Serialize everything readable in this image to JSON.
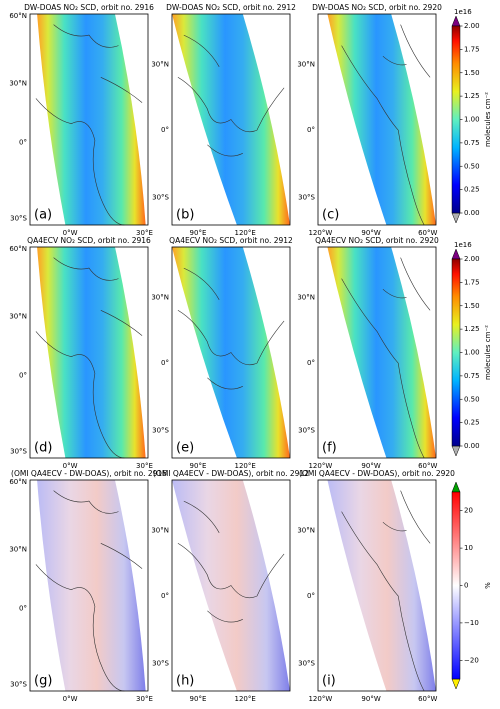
{
  "panels": [
    {
      "title": "DW-DOAS NO₂ SCD, orbit no. 2916",
      "letter": "(a)",
      "lat_ticks": [
        "60°N",
        "30°N",
        "0°",
        "30°S"
      ],
      "lon_ticks": [
        "0°W",
        "30°E"
      ]
    },
    {
      "title": "DW-DOAS NO₂ SCD, orbit no. 2912",
      "letter": "(b)",
      "lat_ticks": [
        "30°N",
        "0°",
        "30°S"
      ],
      "lon_ticks": [
        "90°E",
        "120°E"
      ]
    },
    {
      "title": "DW-DOAS NO₂ SCD, orbit no. 2920",
      "letter": "(c)",
      "lat_ticks": [
        "30°N",
        "0°",
        "30°S"
      ],
      "lon_ticks": [
        "120°W",
        "90°W",
        "60°W"
      ]
    },
    {
      "title": "QA4ECV NO₂ SCD, orbit no. 2916",
      "letter": "(d)",
      "lat_ticks": [
        "60°N",
        "30°N",
        "0°",
        "30°S"
      ],
      "lon_ticks": [
        "0°W",
        "30°E"
      ]
    },
    {
      "title": "QA4ECV NO₂ SCD, orbit no. 2912",
      "letter": "(e)",
      "lat_ticks": [
        "30°N",
        "0°",
        "30°S"
      ],
      "lon_ticks": [
        "90°E",
        "120°E"
      ]
    },
    {
      "title": "QA4ECV NO₂ SCD, orbit no. 2920",
      "letter": "(f)",
      "lat_ticks": [
        "30°N",
        "0°",
        "30°S"
      ],
      "lon_ticks": [
        "120°W",
        "90°W",
        "60°W"
      ]
    },
    {
      "title": "(OMI QA4ECV - DW-DOAS), orbit no. 2916",
      "letter": "(g)",
      "lat_ticks": [
        "60°N",
        "30°N",
        "0°",
        "30°S"
      ],
      "lon_ticks": [
        "0°W",
        "30°E"
      ]
    },
    {
      "title": "(OMI QA4ECV - DW-DOAS), orbit no. 2912",
      "letter": "(h)",
      "lat_ticks": [
        "30°N",
        "0°",
        "30°S"
      ],
      "lon_ticks": [
        "90°E",
        "120°E"
      ]
    },
    {
      "title": "(OMI QA4ECV - DW-DOAS), orbit no. 2920",
      "letter": "(i)",
      "lat_ticks": [
        "30°N",
        "0°",
        "30°S"
      ],
      "lon_ticks": [
        "120°W",
        "90°W",
        "60°W"
      ]
    }
  ],
  "colorbars": [
    {
      "label": "molecules cm⁻²",
      "exponent": "1e16",
      "range": [
        0,
        2
      ],
      "ticks": [
        {
          "value": 0,
          "label": "0.00"
        },
        {
          "value": 0.25,
          "label": "0.25"
        },
        {
          "value": 0.5,
          "label": "0.50"
        },
        {
          "value": 0.75,
          "label": "0.75"
        },
        {
          "value": 1,
          "label": "1.00"
        },
        {
          "value": 1.25,
          "label": "1.25"
        },
        {
          "value": 1.5,
          "label": "1.50"
        },
        {
          "value": 1.75,
          "label": "1.75"
        },
        {
          "value": 2,
          "label": "2.00"
        }
      ]
    },
    {
      "label": "molecules cm⁻²",
      "exponent": "1e16",
      "range": [
        0,
        2
      ],
      "ticks": [
        {
          "value": 0,
          "label": "0.00"
        },
        {
          "value": 0.25,
          "label": "0.25"
        },
        {
          "value": 0.5,
          "label": "0.50"
        },
        {
          "value": 0.75,
          "label": "0.75"
        },
        {
          "value": 1,
          "label": "1.00"
        },
        {
          "value": 1.25,
          "label": "1.25"
        },
        {
          "value": 1.5,
          "label": "1.50"
        },
        {
          "value": 1.75,
          "label": "1.75"
        },
        {
          "value": 2,
          "label": "2.00"
        }
      ]
    },
    {
      "label": "%",
      "range": [
        -25,
        25
      ],
      "ticks": [
        {
          "value": -20,
          "label": "−20"
        },
        {
          "value": -10,
          "label": "−10"
        },
        0,
        10,
        20
      ]
    }
  ]
}
